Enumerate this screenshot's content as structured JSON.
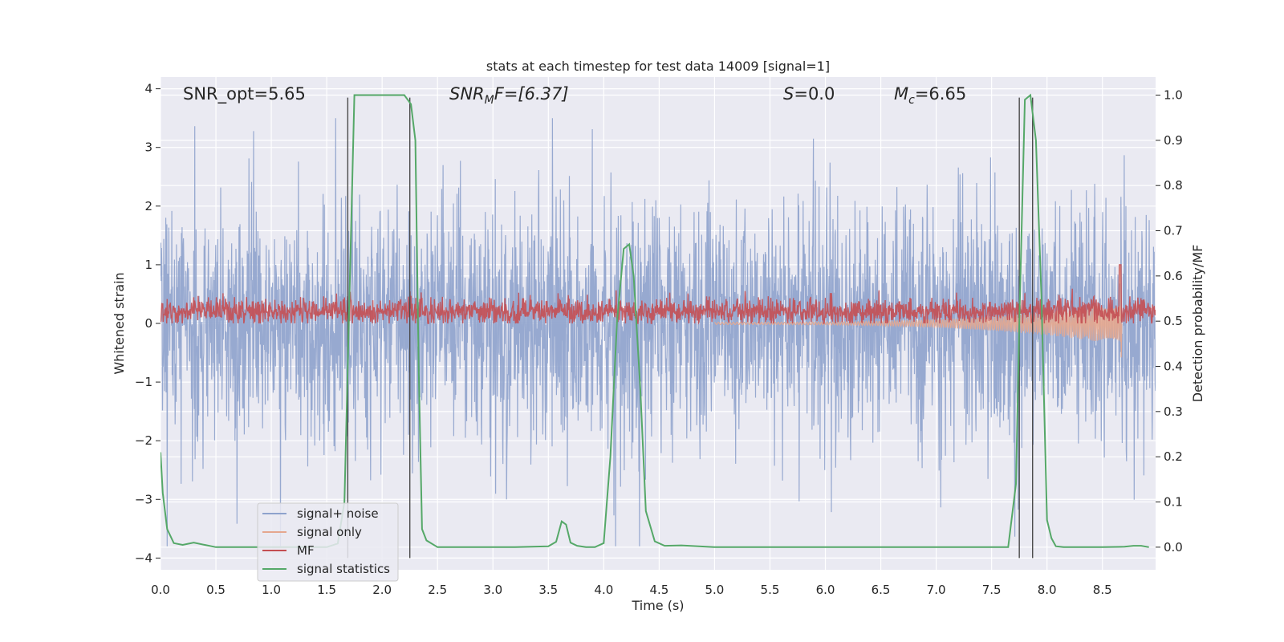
{
  "chart_data": {
    "type": "line",
    "title": "stats at each timestep for test data 14009 [signal=1]",
    "xlabel": "Time (s)",
    "ylabel": "Whitened strain",
    "y2label": "Detection probability/MF",
    "xlim": [
      0.0,
      8.98
    ],
    "ylim": [
      -4.2,
      4.2
    ],
    "y2lim": [
      -0.05,
      1.04
    ],
    "xticks": [
      0.0,
      0.5,
      1.0,
      1.5,
      2.0,
      2.5,
      3.0,
      3.5,
      4.0,
      4.5,
      5.0,
      5.5,
      6.0,
      6.5,
      7.0,
      7.5,
      8.0,
      8.5
    ],
    "xtick_labels": [
      "0.0",
      "0.5",
      "1.0",
      "1.5",
      "2.0",
      "2.5",
      "3.0",
      "3.5",
      "4.0",
      "4.5",
      "5.0",
      "5.5",
      "6.0",
      "6.5",
      "7.0",
      "7.5",
      "8.0",
      "8.5"
    ],
    "yticks": [
      -4,
      -3,
      -2,
      -1,
      0,
      1,
      2,
      3,
      4
    ],
    "ytick_labels": [
      "−4",
      "−3",
      "−2",
      "−1",
      "0",
      "1",
      "2",
      "3",
      "4"
    ],
    "y2ticks": [
      0.0,
      0.1,
      0.2,
      0.3,
      0.4,
      0.5,
      0.6,
      0.7,
      0.8,
      0.9,
      1.0
    ],
    "y2tick_labels": [
      "0.0",
      "0.1",
      "0.2",
      "0.3",
      "0.4",
      "0.5",
      "0.6",
      "0.7",
      "0.8",
      "0.9",
      "1.0"
    ],
    "annotations": {
      "snr_opt": "SNR_opt=5.65",
      "snr_mf_main": "SNR",
      "snr_mf_sub": "M",
      "snr_mf_rest": "F=[6.37]",
      "s_italic": "S",
      "s_rest": "=0.0",
      "mc_main": "M",
      "mc_sub": "c",
      "mc_rest": "=6.65"
    },
    "series": [
      {
        "name": "signal+ noise",
        "color": "#8ea2cc",
        "axis": "left",
        "style": "noise",
        "x_range": [
          0.0,
          8.98
        ],
        "amplitude_range": [
          -3.8,
          3.5
        ]
      },
      {
        "name": "signal only",
        "color": "#e5a78e",
        "axis": "left",
        "style": "chirp",
        "x_range": [
          5.0,
          8.67
        ],
        "peak": 0.98,
        "trough": -0.58
      },
      {
        "name": "MF",
        "color": "#c44e52",
        "axis": "left",
        "style": "band",
        "x_range": [
          0.0,
          8.98
        ],
        "value_range": [
          0.0,
          1.0
        ]
      },
      {
        "name": "signal statistics",
        "color": "#55a868",
        "axis": "right",
        "style": "line",
        "x": [
          0.0,
          0.02,
          0.06,
          0.12,
          0.2,
          0.3,
          0.4,
          0.5,
          0.6,
          0.8,
          1.0,
          1.3,
          1.5,
          1.6,
          1.66,
          1.7,
          1.75,
          1.85,
          2.0,
          2.2,
          2.26,
          2.3,
          2.33,
          2.36,
          2.4,
          2.5,
          2.8,
          3.2,
          3.5,
          3.57,
          3.62,
          3.66,
          3.7,
          3.76,
          3.84,
          3.92,
          4.0,
          4.06,
          4.12,
          4.18,
          4.23,
          4.27,
          4.33,
          4.38,
          4.46,
          4.55,
          4.7,
          5.0,
          5.5,
          6.0,
          6.5,
          7.0,
          7.5,
          7.65,
          7.72,
          7.75,
          7.8,
          7.85,
          7.9,
          7.95,
          8.0,
          8.04,
          8.08,
          8.15,
          8.3,
          8.5,
          8.7,
          8.78,
          8.85,
          8.92
        ],
        "y": [
          0.21,
          0.12,
          0.04,
          0.009,
          0.005,
          0.01,
          0.005,
          0.0,
          0.0,
          0.0,
          0.0,
          0.0,
          0.0,
          0.008,
          0.1,
          0.5,
          1.0,
          1.0,
          1.0,
          1.0,
          0.98,
          0.9,
          0.4,
          0.04,
          0.015,
          0.0,
          0.0,
          0.0,
          0.002,
          0.012,
          0.057,
          0.05,
          0.01,
          0.003,
          0.0,
          0.0,
          0.009,
          0.2,
          0.5,
          0.66,
          0.67,
          0.6,
          0.35,
          0.08,
          0.013,
          0.003,
          0.004,
          0.0,
          0.0,
          0.0,
          0.0,
          0.0,
          0.0,
          0.0,
          0.14,
          0.5,
          0.99,
          1.0,
          0.9,
          0.55,
          0.06,
          0.02,
          0.002,
          0.0,
          0.0,
          0.0,
          0.001,
          0.003,
          0.003,
          0.0
        ]
      }
    ],
    "vertical_lines": [
      {
        "x": 1.69,
        "y_min": -4.0,
        "y_max": 3.85
      },
      {
        "x": 2.25,
        "y_min": -4.0,
        "y_max": 3.85
      },
      {
        "x": 7.75,
        "y_min": -4.0,
        "y_max": 3.85
      },
      {
        "x": 7.87,
        "y_min": -4.0,
        "y_max": 3.85
      }
    ],
    "legend_placement": "lower-left"
  }
}
